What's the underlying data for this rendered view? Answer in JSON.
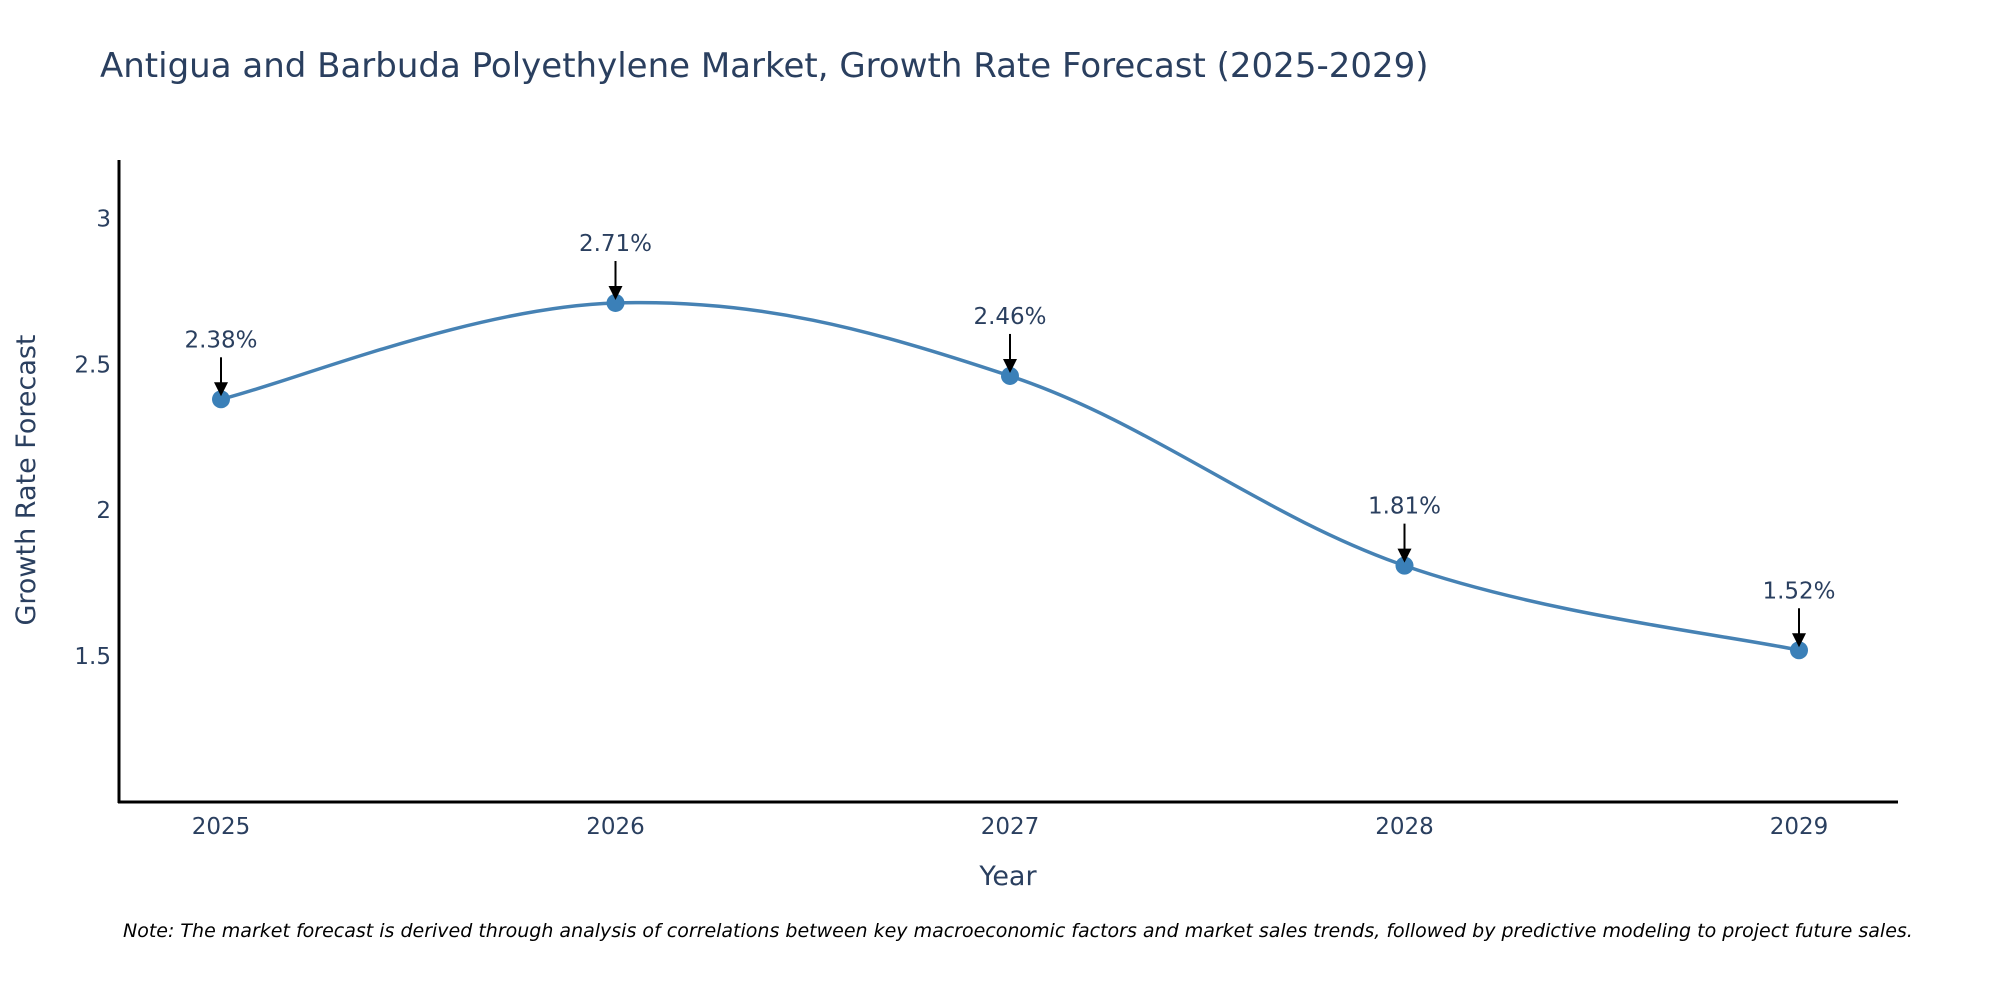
{
  "chart_data": {
    "type": "line",
    "title": "Antigua and Barbuda Polyethylene Market, Growth Rate Forecast (2025-2029)",
    "xlabel": "Year",
    "ylabel": "Growth Rate Forecast",
    "categories": [
      "2025",
      "2026",
      "2027",
      "2028",
      "2029"
    ],
    "values": [
      2.38,
      2.71,
      2.46,
      1.81,
      1.52
    ],
    "data_labels": [
      "2.38%",
      "2.71%",
      "2.46%",
      "1.81%",
      "1.52%"
    ],
    "yticks": [
      1.5,
      2,
      2.5,
      3
    ],
    "ytick_labels": [
      "1.5",
      "2",
      "2.5",
      "3"
    ],
    "ylim": [
      1.0,
      3.2
    ],
    "grid": false,
    "line_color": "#4682b4",
    "marker_color": "#3b80b8",
    "note": "Note: The market forecast is derived through analysis of correlations between key macroeconomic factors and market sales trends, followed by predictive modeling to project future sales."
  }
}
